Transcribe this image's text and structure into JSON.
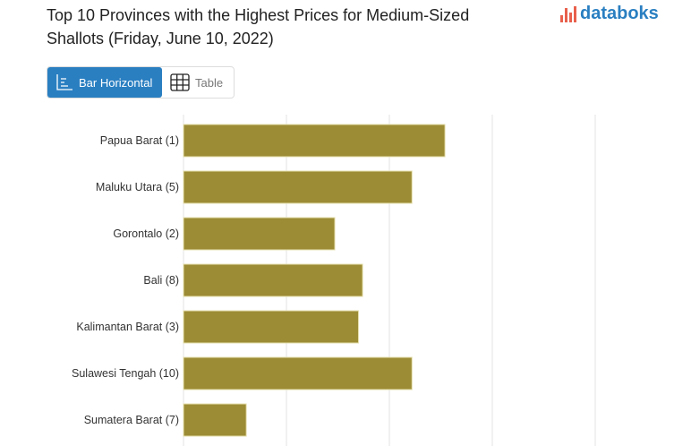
{
  "title": "Top 10 Provinces with the Highest Prices for Medium-Sized Shallots (Friday, June 10, 2022)",
  "logo": "databoks",
  "toggle": {
    "bar_label": "Bar Horizontal",
    "table_label": "Table",
    "bar_icon": "bar-chart-icon",
    "table_icon": "table-grid-icon",
    "active": "bar"
  },
  "colors": {
    "bar": "#9c8c35",
    "accent": "#2a7fc1",
    "logo_mark": "#e8604c"
  },
  "chart_data": {
    "type": "bar",
    "orientation": "horizontal",
    "title": "Top 10 Provinces with the Highest Prices for Medium-Sized Shallots (Friday, June 10, 2022)",
    "categories": [
      "Papua Barat (1)",
      "Maluku Utara (5)",
      "Gorontalo (2)",
      "Bali (8)",
      "Kalimantan Barat (3)",
      "Sulawesi Tengah (10)",
      "Sumatera Barat (7)"
    ],
    "values": [
      2.54,
      2.22,
      1.47,
      1.74,
      1.7,
      2.22,
      0.61
    ],
    "value_units": "gridline intervals (axis tick labels not visible)",
    "xlim": [
      0,
      4.3
    ],
    "grid": true,
    "legend": "none"
  }
}
